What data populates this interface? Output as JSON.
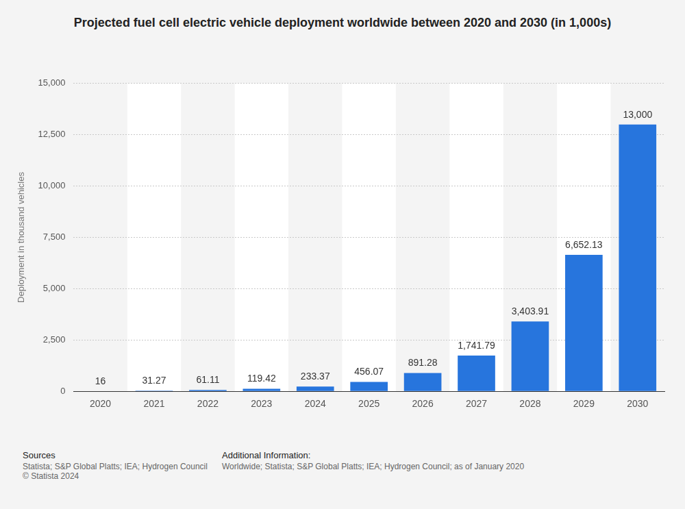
{
  "chart_data": {
    "type": "bar",
    "title": "Projected fuel cell electric vehicle deployment worldwide between 2020 and 2030 (in 1,000s)",
    "y_label": "Deployment in thousand vehicles",
    "categories": [
      "2020",
      "2021",
      "2022",
      "2023",
      "2024",
      "2025",
      "2026",
      "2027",
      "2028",
      "2029",
      "2030"
    ],
    "values": [
      16,
      31.27,
      61.11,
      119.42,
      233.37,
      456.07,
      891.28,
      1741.79,
      3403.91,
      6652.13,
      13000
    ],
    "value_labels": [
      "16",
      "31.27",
      "61.11",
      "119.42",
      "233.37",
      "456.07",
      "891.28",
      "1,741.79",
      "3,403.91",
      "6,652.13",
      "13,000"
    ],
    "color": "#2775dd",
    "ylim": [
      0,
      15000
    ],
    "yticks": [
      0,
      {
        "value": 2500,
        "label": "2,500"
      },
      {
        "value": 5000,
        "label": "5,000"
      },
      {
        "value": 7500,
        "label": "7,500"
      },
      {
        "value": 10000,
        "label": "10,000"
      },
      {
        "value": 12500,
        "label": "12,500"
      },
      {
        "value": 15000,
        "label": "15,000"
      }
    ],
    "grid": true,
    "data_labels": true,
    "annotations": {
      "sources_title": "Sources",
      "sources": "Statista; S&P Global Platts; IEA; Hydrogen Council",
      "copyright": "© Statista 2024",
      "info_title": "Additional Information:",
      "info": "Worldwide; Statista; S&P Global Platts; IEA; Hydrogen Council; as of January 2020"
    }
  }
}
